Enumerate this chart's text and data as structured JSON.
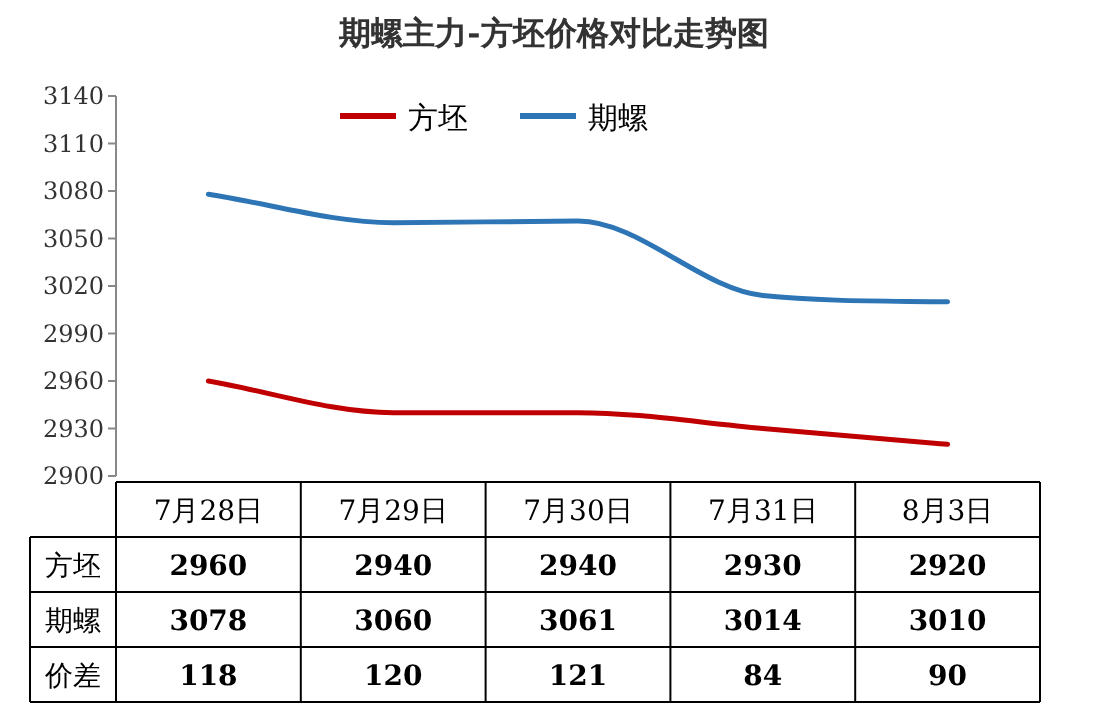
{
  "chart_data": {
    "type": "line",
    "title": "期螺主力-方坯价格对比走势图",
    "categories": [
      "7月28日",
      "7月29日",
      "7月30日",
      "7月31日",
      "8月3日"
    ],
    "series": [
      {
        "name": "方坯",
        "color": "#c00000",
        "values": [
          2960,
          2940,
          2940,
          2930,
          2920
        ]
      },
      {
        "name": "期螺",
        "color": "#2e75b6",
        "values": [
          3078,
          3060,
          3061,
          3014,
          3010
        ]
      }
    ],
    "annotations": [
      "价差",
      "118",
      "120",
      "121",
      "84",
      "90"
    ],
    "ylim": [
      2900,
      3140
    ],
    "yticks": [
      2900,
      2930,
      2960,
      2990,
      3020,
      3050,
      3080,
      3110,
      3140
    ],
    "legend": "top",
    "data_labels": true,
    "grid": false,
    "marker": "none",
    "line_style": "solid"
  }
}
